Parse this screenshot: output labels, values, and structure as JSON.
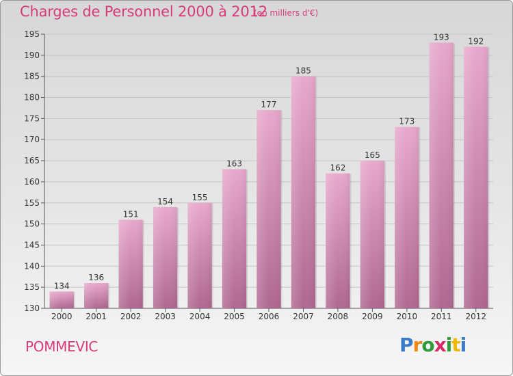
{
  "header": {
    "title": "Charges de Personnel 2000 à 2012",
    "subtitle": "(en milliers d'€)"
  },
  "footer": {
    "commune": "POMMEVIC",
    "logo_text": "Proxiti"
  },
  "colors": {
    "accent": "#d83a7a",
    "bar_top": "#e8a8cc",
    "bar_bottom": "#b06890"
  },
  "chart_data": {
    "type": "bar",
    "title": "Charges de Personnel 2000 à 2012",
    "subtitle": "(en milliers d'€)",
    "categories": [
      "2000",
      "2001",
      "2002",
      "2003",
      "2004",
      "2005",
      "2006",
      "2007",
      "2008",
      "2009",
      "2010",
      "2011",
      "2012"
    ],
    "values": [
      134,
      136,
      151,
      154,
      155,
      163,
      177,
      185,
      162,
      165,
      173,
      193,
      192
    ],
    "ylim": [
      130,
      195
    ],
    "yticks": [
      130,
      135,
      140,
      145,
      150,
      155,
      160,
      165,
      170,
      175,
      180,
      185,
      190,
      195
    ],
    "grid": true,
    "legend": "none",
    "xlabel": "",
    "ylabel": ""
  }
}
